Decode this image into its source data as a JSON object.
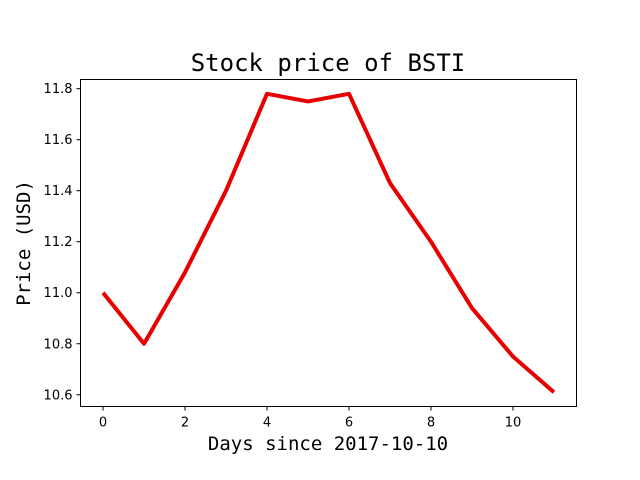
{
  "chart_data": {
    "type": "line",
    "title": "Stock price of BSTI",
    "xlabel": "Days since 2017-10-10",
    "ylabel": "Price (USD)",
    "xlim": [
      -0.55,
      11.55
    ],
    "ylim": [
      10.554,
      11.836
    ],
    "xticks": [
      0,
      2,
      4,
      6,
      8,
      10
    ],
    "yticks": [
      10.6,
      10.8,
      11.0,
      11.2,
      11.4,
      11.6,
      11.8
    ],
    "grid": false,
    "series": [
      {
        "color": "#e80000",
        "x": [
          0,
          1,
          2,
          3,
          4,
          5,
          6,
          7,
          8,
          9,
          10,
          11
        ],
        "y": [
          11.0,
          10.8,
          11.08,
          11.4,
          11.78,
          11.75,
          11.78,
          11.43,
          11.2,
          10.94,
          10.75,
          10.61
        ]
      }
    ]
  }
}
